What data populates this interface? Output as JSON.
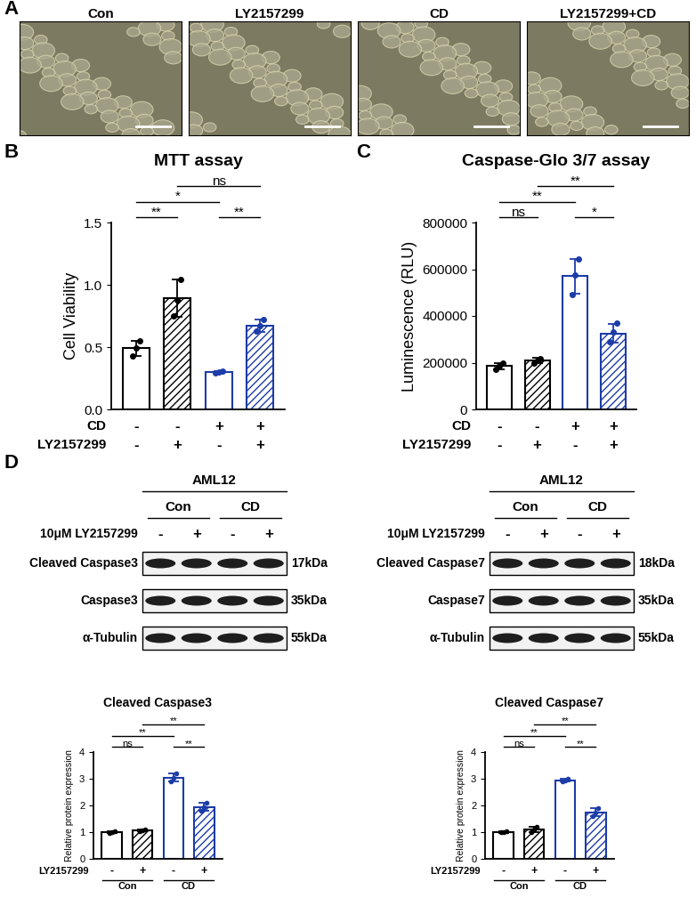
{
  "panel_labels": [
    "A",
    "B",
    "C",
    "D"
  ],
  "images": [
    "Con",
    "LY2157299",
    "CD",
    "LY2157299+CD"
  ],
  "blots": [
    {
      "cell_line": "AML12",
      "groups": [
        "Con",
        "Con",
        "CD",
        "CD"
      ],
      "treatment": {
        "name": "10μM LY2157299",
        "marks": [
          "-",
          "+",
          "-",
          "+"
        ]
      },
      "rows": [
        {
          "name": "Cleaved Caspase3",
          "size": "17kDa"
        },
        {
          "name": "Caspase3",
          "size": "35kDa"
        },
        {
          "name": "α-Tubulin",
          "size": "55kDa"
        }
      ]
    },
    {
      "cell_line": "AML12",
      "groups": [
        "Con",
        "Con",
        "CD",
        "CD"
      ],
      "treatment": {
        "name": "10μM LY2157299",
        "marks": [
          "-",
          "+",
          "-",
          "+"
        ]
      },
      "rows": [
        {
          "name": "Cleaved Caspase7",
          "size": "18kDa"
        },
        {
          "name": "Caspase7",
          "size": "35kDa"
        },
        {
          "name": "α-Tubulin",
          "size": "55kDa"
        }
      ]
    }
  ],
  "chart_data": [
    {
      "type": "bar",
      "title": "MTT assay",
      "ylabel": "Cell Viability",
      "values": [
        0.49,
        0.89,
        0.3,
        0.67
      ],
      "errors": [
        0.06,
        0.15,
        0.005,
        0.05
      ],
      "points": [
        [
          0.43,
          0.49,
          0.55
        ],
        [
          0.75,
          0.88,
          1.04
        ],
        [
          0.295,
          0.3,
          0.305
        ],
        [
          0.63,
          0.67,
          0.72
        ]
      ],
      "colors": [
        "#000000",
        "#000000",
        "#1c3ca8",
        "#1c3ca8"
      ],
      "ylim": [
        0,
        1.5
      ],
      "yticks": [
        {
          "value": 0,
          "label": "0.0"
        },
        {
          "value": 0.5,
          "label": "0.5"
        },
        {
          "value": 1.0,
          "label": "1.0"
        },
        {
          "value": 1.5,
          "label": "1.5"
        }
      ],
      "conditions": [
        {
          "name": "CD",
          "marks": [
            "-",
            "-",
            "+",
            "+"
          ]
        },
        {
          "name": "LY2157299",
          "marks": [
            "-",
            "+",
            "-",
            "+"
          ]
        }
      ],
      "significance": [
        {
          "between": [
            0,
            1
          ],
          "label": "**"
        },
        {
          "between": [
            2,
            3
          ],
          "label": "**"
        },
        {
          "between": [
            0,
            2
          ],
          "label": "*"
        },
        {
          "between": [
            1,
            3
          ],
          "label": "ns"
        }
      ]
    },
    {
      "type": "bar",
      "title": "Caspase-Glo 3/7 assay",
      "ylabel": "Luminescence (RLU)",
      "values": [
        185000,
        210000,
        570000,
        325000
      ],
      "errors": [
        15000,
        10000,
        75000,
        40000
      ],
      "points": [
        [
          170000,
          185000,
          200000
        ],
        [
          200000,
          210000,
          218000
        ],
        [
          490000,
          575000,
          645000
        ],
        [
          290000,
          330000,
          370000
        ]
      ],
      "colors": [
        "#000000",
        "#000000",
        "#1c3ca8",
        "#1c3ca8"
      ],
      "ylim": [
        0,
        800000
      ],
      "yticks": [
        0,
        200000,
        400000,
        600000,
        800000
      ],
      "conditions": [
        {
          "name": "CD",
          "marks": [
            "-",
            "-",
            "+",
            "+"
          ]
        },
        {
          "name": "LY2157299",
          "marks": [
            "-",
            "+",
            "-",
            "+"
          ]
        }
      ],
      "significance": [
        {
          "between": [
            0,
            1
          ],
          "label": "ns"
        },
        {
          "between": [
            2,
            3
          ],
          "label": "*"
        },
        {
          "between": [
            0,
            2
          ],
          "label": "**"
        },
        {
          "between": [
            1,
            3
          ],
          "label": "**"
        }
      ]
    },
    {
      "type": "bar",
      "title": "Cleaved Caspase3",
      "ylabel": "Relative protein expression",
      "values": [
        1.0,
        1.07,
        3.05,
        1.95
      ],
      "errors": [
        0.03,
        0.04,
        0.15,
        0.15
      ],
      "points": [
        [
          0.98,
          1.0,
          1.02
        ],
        [
          1.03,
          1.07,
          1.1
        ],
        [
          2.9,
          3.05,
          3.2
        ],
        [
          1.8,
          1.95,
          2.1
        ]
      ],
      "colors": [
        "#000000",
        "#000000",
        "#1c3ca8",
        "#1c3ca8"
      ],
      "ylim": [
        0,
        4
      ],
      "yticks": [
        0,
        1,
        2,
        3,
        4
      ],
      "conditions": [
        {
          "name": "LY2157299",
          "marks": [
            "-",
            "+",
            "-",
            "+"
          ]
        }
      ],
      "groups": [
        "Con",
        "Con",
        "CD",
        "CD"
      ],
      "significance": [
        {
          "between": [
            0,
            1
          ],
          "label": "ns"
        },
        {
          "between": [
            2,
            3
          ],
          "label": "**"
        },
        {
          "between": [
            0,
            2
          ],
          "label": "**"
        },
        {
          "between": [
            1,
            3
          ],
          "label": "**"
        }
      ]
    },
    {
      "type": "bar",
      "title": "Cleaved Caspase7",
      "ylabel": "Relative protein expression",
      "values": [
        1.0,
        1.1,
        2.95,
        1.75
      ],
      "errors": [
        0.02,
        0.1,
        0.05,
        0.15
      ],
      "points": [
        [
          1.0,
          1.0,
          1.02
        ],
        [
          1.0,
          1.1,
          1.2
        ],
        [
          2.9,
          2.95,
          3.0
        ],
        [
          1.6,
          1.75,
          1.9
        ]
      ],
      "colors": [
        "#000000",
        "#000000",
        "#1c3ca8",
        "#1c3ca8"
      ],
      "ylim": [
        0,
        4
      ],
      "yticks": [
        0,
        1,
        2,
        3,
        4
      ],
      "conditions": [
        {
          "name": "LY2157299",
          "marks": [
            "-",
            "+",
            "-",
            "+"
          ]
        }
      ],
      "groups": [
        "Con",
        "Con",
        "CD",
        "CD"
      ],
      "significance": [
        {
          "between": [
            0,
            1
          ],
          "label": "ns"
        },
        {
          "between": [
            2,
            3
          ],
          "label": "**"
        },
        {
          "between": [
            0,
            2
          ],
          "label": "**"
        },
        {
          "between": [
            1,
            3
          ],
          "label": "**"
        }
      ]
    }
  ]
}
